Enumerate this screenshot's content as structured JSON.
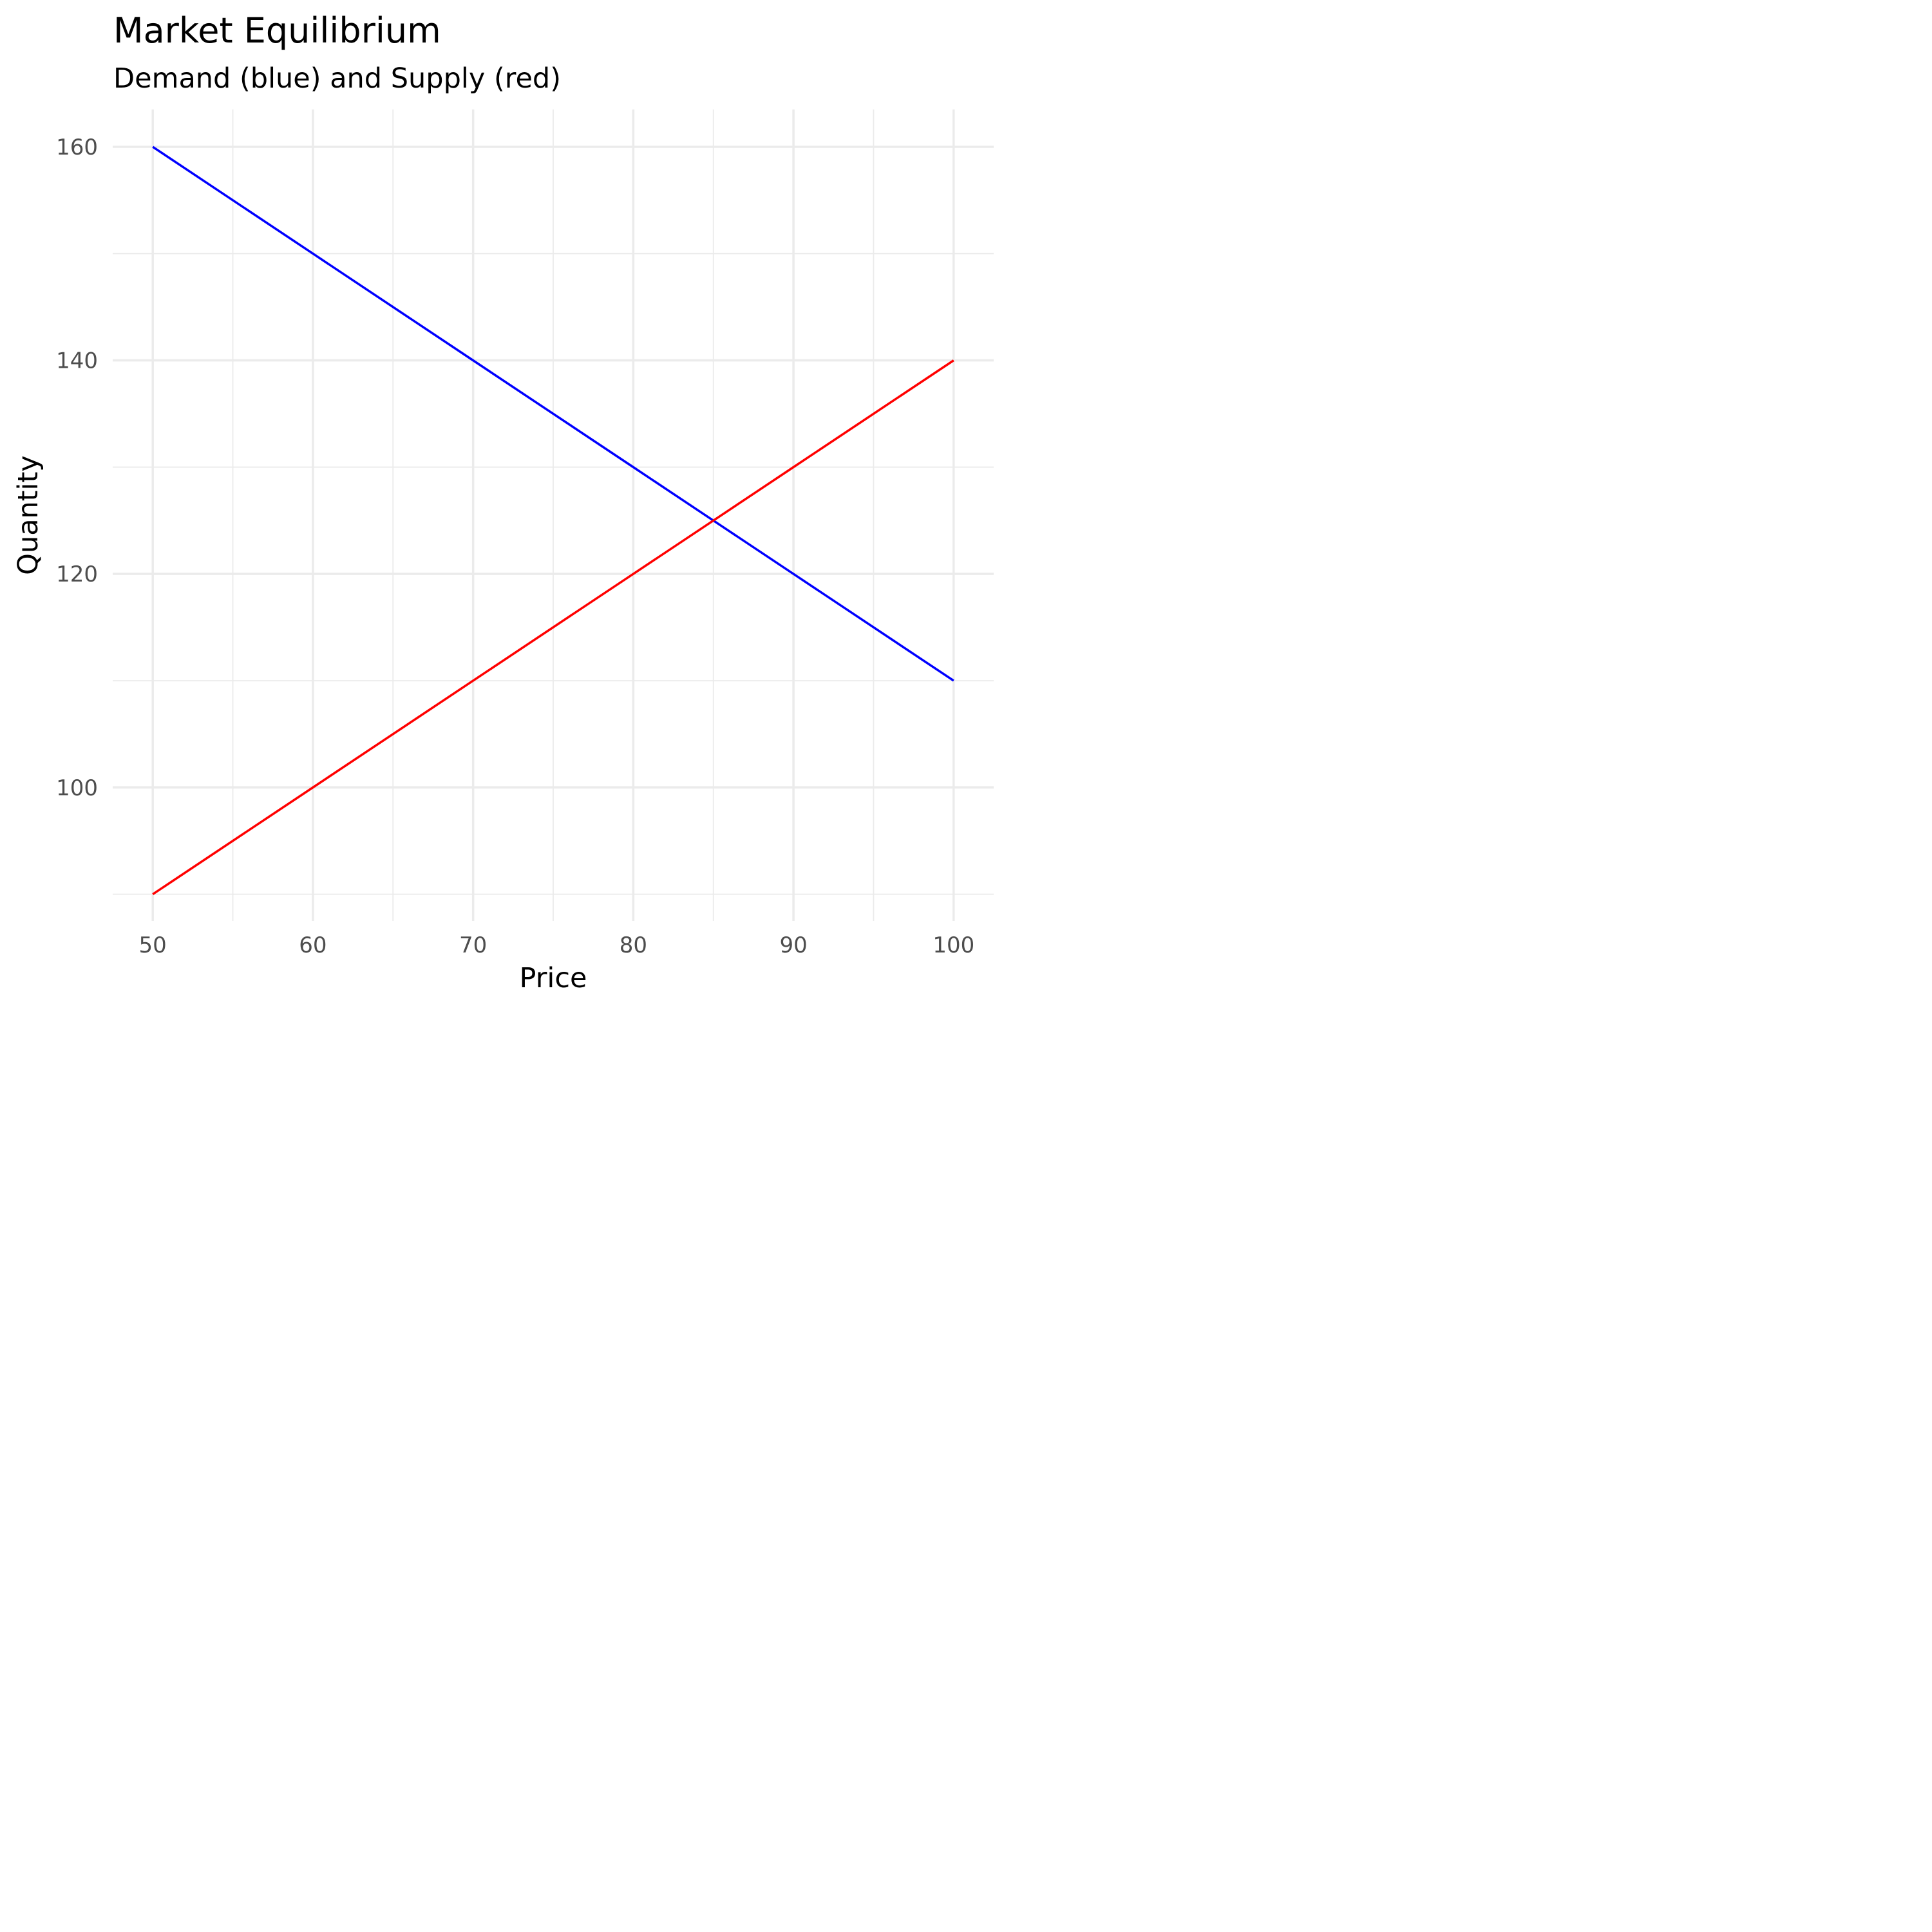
{
  "chart_data": {
    "type": "line",
    "title": "Market Equilibrium",
    "subtitle": "Demand (blue) and Supply (red)",
    "xlabel": "Price",
    "ylabel": "Quantity",
    "xlim": [
      47.5,
      102.5
    ],
    "ylim": [
      87.5,
      163.5
    ],
    "x_ticks": [
      50,
      60,
      70,
      80,
      90,
      100
    ],
    "x_minor_ticks": [
      55,
      65,
      75,
      85,
      95
    ],
    "y_ticks": [
      100,
      120,
      140,
      160
    ],
    "y_minor_ticks": [
      90,
      110,
      130,
      150
    ],
    "grid": true,
    "legend": "none",
    "series": [
      {
        "color": "#0000ff",
        "x": [
          50,
          60,
          70,
          80,
          85,
          90,
          100
        ],
        "y": [
          160,
          150,
          140,
          130,
          125,
          120,
          110
        ]
      },
      {
        "color": "#ff0000",
        "x": [
          50,
          60,
          70,
          80,
          85,
          90,
          100
        ],
        "y": [
          90,
          100,
          110,
          120,
          125,
          130,
          140
        ]
      }
    ]
  }
}
